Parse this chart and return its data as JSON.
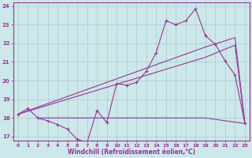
{
  "bg_color": "#cce8ea",
  "line_color": "#993399",
  "grid_color": "#aacccc",
  "xlabel": "Windchill (Refroidissement éolien,°C)",
  "xlim": [
    -0.5,
    23.5
  ],
  "ylim": [
    16.8,
    24.2
  ],
  "yticks": [
    17,
    18,
    19,
    20,
    21,
    22,
    23,
    24
  ],
  "xticks": [
    0,
    1,
    2,
    3,
    4,
    5,
    6,
    7,
    8,
    9,
    10,
    11,
    12,
    13,
    14,
    15,
    16,
    17,
    18,
    19,
    20,
    21,
    22,
    23
  ],
  "series1_x": [
    0,
    1,
    2,
    3,
    4,
    5,
    6,
    7,
    8,
    9,
    10,
    11,
    12,
    13,
    14,
    15,
    16,
    17,
    18,
    19,
    20,
    21,
    22,
    23
  ],
  "series1_y": [
    18.2,
    18.5,
    18.0,
    17.85,
    17.65,
    17.4,
    16.85,
    16.7,
    18.4,
    17.75,
    19.85,
    19.75,
    19.9,
    20.5,
    21.5,
    23.2,
    23.0,
    23.2,
    23.85,
    22.4,
    21.95,
    21.05,
    20.3,
    17.7
  ],
  "series2_x": [
    2,
    19,
    23
  ],
  "series2_y": [
    18.0,
    18.0,
    17.7
  ],
  "series3_x": [
    0,
    19,
    22,
    23
  ],
  "series3_y": [
    18.2,
    21.8,
    22.3,
    17.7
  ],
  "series4_x": [
    0,
    19,
    22,
    23
  ],
  "series4_y": [
    18.2,
    21.25,
    21.9,
    17.7
  ]
}
